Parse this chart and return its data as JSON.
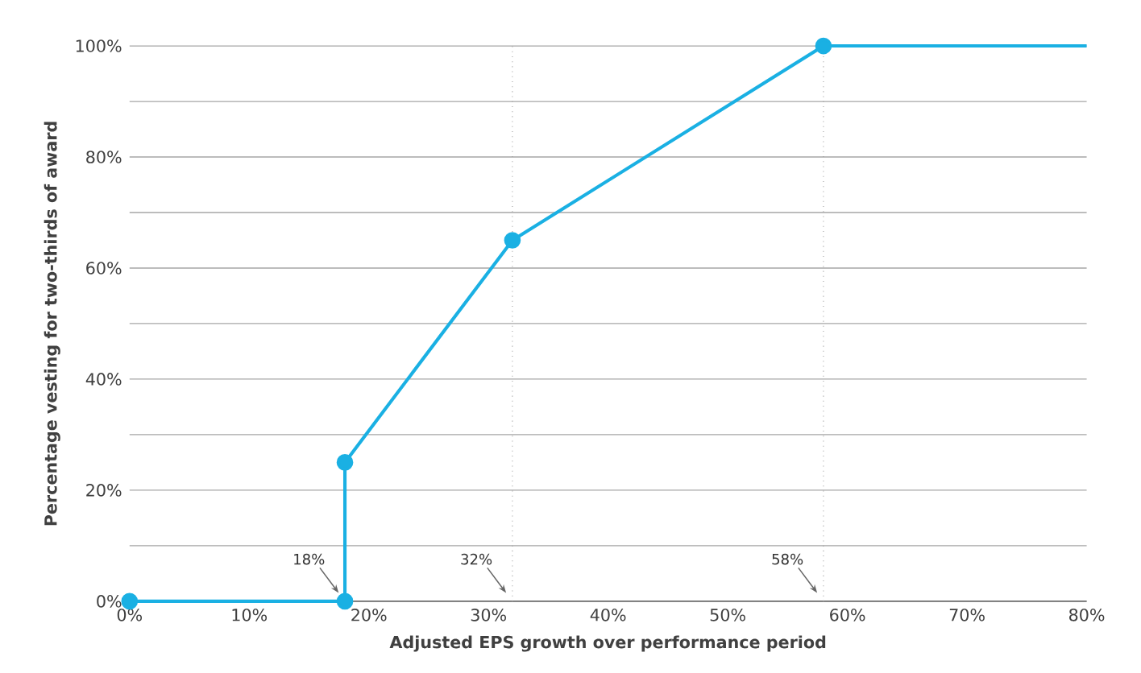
{
  "chart_data": {
    "type": "line",
    "xlabel": "Adjusted EPS growth over performance period",
    "ylabel": "Percentage vesting for two-thirds of award",
    "series": [
      {
        "color": "#1ab0e3",
        "marker": "circle",
        "x": [
          0,
          18,
          18,
          32,
          58
        ],
        "values": [
          0,
          0,
          25,
          65,
          100
        ]
      },
      {
        "color": "#1ab0e3",
        "marker": "none",
        "x": [
          58,
          80
        ],
        "values": [
          100,
          100
        ]
      }
    ],
    "xlim": [
      0,
      80
    ],
    "xticks": [
      {
        "value": 0,
        "label": "0%"
      },
      {
        "value": 10,
        "label": "10%"
      },
      {
        "value": 20,
        "label": "20%"
      },
      {
        "value": 30,
        "label": "30%"
      },
      {
        "value": 40,
        "label": "40%"
      },
      {
        "value": 50,
        "label": "50%"
      },
      {
        "value": 60,
        "label": "60%"
      },
      {
        "value": 70,
        "label": "70%"
      },
      {
        "value": 80,
        "label": "80%"
      }
    ],
    "ylim": [
      0,
      100
    ],
    "yticks": [
      {
        "value": 0,
        "label": "0%"
      },
      {
        "value": 10,
        "label": null
      },
      {
        "value": 20,
        "label": "20%"
      },
      {
        "value": 30,
        "label": null
      },
      {
        "value": 40,
        "label": "40%"
      },
      {
        "value": 50,
        "label": null
      },
      {
        "value": 60,
        "label": "60%"
      },
      {
        "value": 70,
        "label": null
      },
      {
        "value": 80,
        "label": "80%"
      },
      {
        "value": 90,
        "label": null
      },
      {
        "value": 100,
        "label": "100%"
      }
    ],
    "grid": "y",
    "ref_lines": [
      {
        "axis": "x",
        "value": 32,
        "label": null,
        "color": "#999999",
        "line_style": "dotted"
      },
      {
        "axis": "x",
        "value": 58,
        "label": null,
        "color": "#999999",
        "line_style": "dotted"
      }
    ],
    "annotations": [
      {
        "text": "18%",
        "x": 18,
        "y": 0
      },
      {
        "text": "32%",
        "x": 32,
        "y": 0
      },
      {
        "text": "58%",
        "x": 58,
        "y": 0
      }
    ]
  }
}
